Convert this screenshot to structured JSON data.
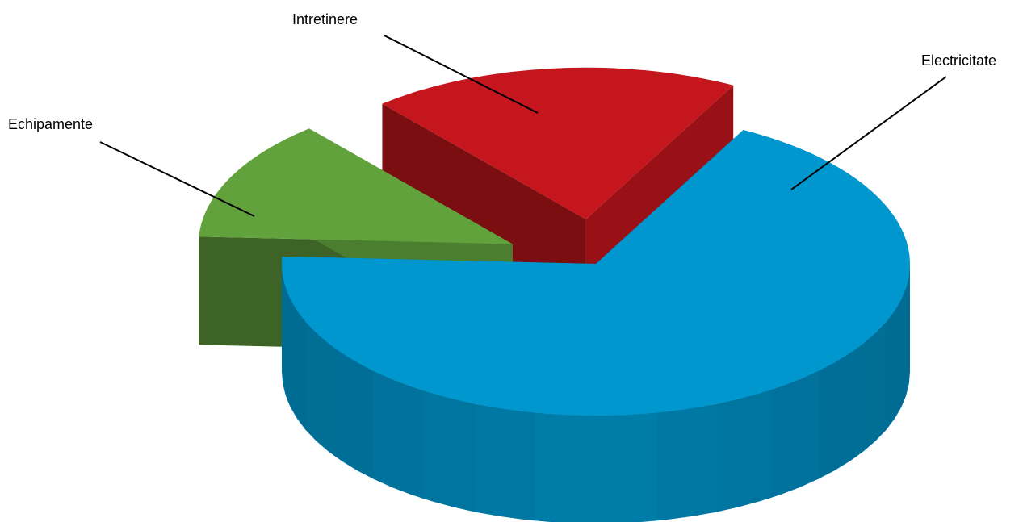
{
  "chart_data": {
    "type": "pie",
    "style": "3d-exploded",
    "title": "",
    "legend": "none",
    "slices": [
      {
        "label": "Electricitate",
        "value": 68,
        "color": "#0096CE",
        "exploded": false
      },
      {
        "label": "Echipamente",
        "value": 13,
        "color": "#62A23D",
        "exploded": true
      },
      {
        "label": "Intretinere",
        "value": 19,
        "color": "#C4161C",
        "exploded": true
      }
    ]
  }
}
